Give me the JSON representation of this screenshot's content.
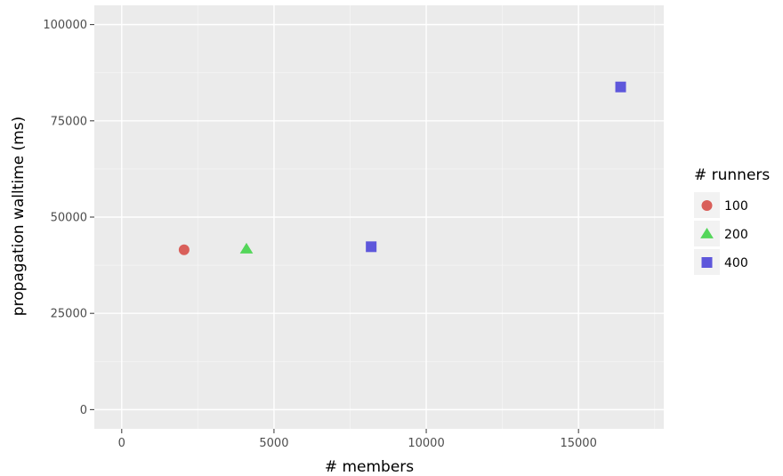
{
  "chart_data": {
    "type": "scatter",
    "xlabel": "# members",
    "ylabel": "propagation walltime (ms)",
    "xlim": [
      -900,
      17800
    ],
    "ylim": [
      -5000,
      105000
    ],
    "x_ticks": [
      0,
      5000,
      10000,
      15000
    ],
    "x_tick_labels": [
      "0",
      "5000",
      "10000",
      "15000"
    ],
    "y_ticks": [
      0,
      25000,
      50000,
      75000,
      100000
    ],
    "y_tick_labels": [
      "0",
      "25000",
      "50000",
      "75000",
      "100000"
    ],
    "grid": true,
    "legend": {
      "title": "# runners",
      "placement": "right"
    },
    "series": [
      {
        "name": "100",
        "shape": "circle",
        "color": "#d95f5a",
        "points": [
          {
            "x": 2048,
            "y": 41500
          }
        ]
      },
      {
        "name": "200",
        "shape": "triangle",
        "color": "#54d65a",
        "points": [
          {
            "x": 4096,
            "y": 41700
          }
        ]
      },
      {
        "name": "400",
        "shape": "square",
        "color": "#5e57db",
        "points": [
          {
            "x": 8192,
            "y": 42300
          },
          {
            "x": 16384,
            "y": 83800
          }
        ]
      }
    ]
  }
}
